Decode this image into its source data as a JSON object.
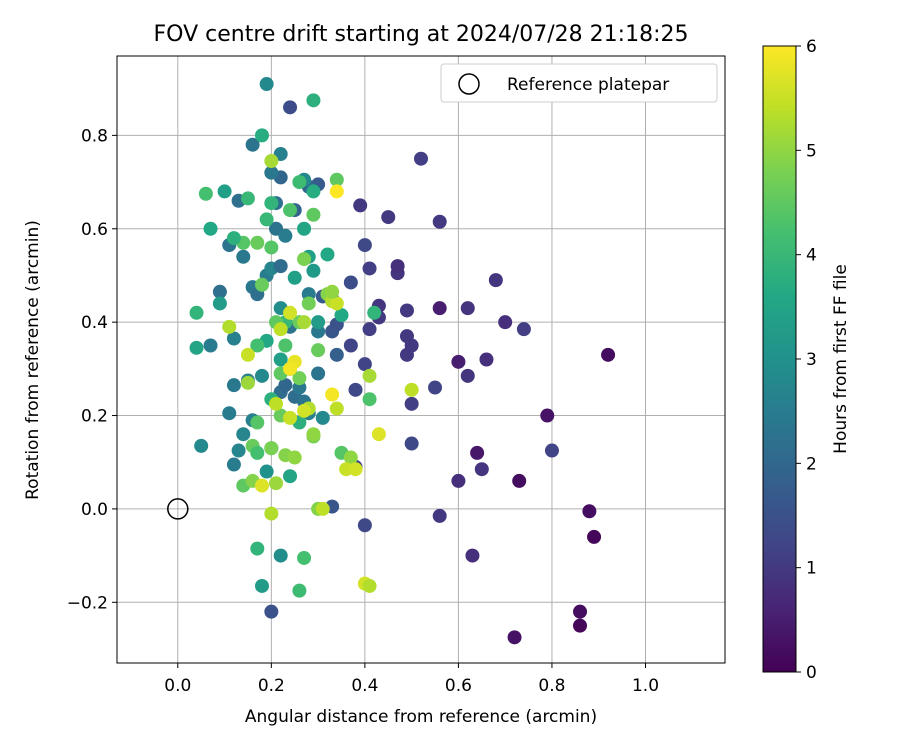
{
  "chart_data": {
    "type": "scatter",
    "title": "FOV centre drift starting at 2024/07/28 21:18:25",
    "xlabel": "Angular distance from reference (arcmin)",
    "ylabel": "Rotation from reference (arcmin)",
    "xlim": [
      -0.13,
      1.17
    ],
    "ylim": [
      -0.33,
      0.97
    ],
    "xticks": [
      0.0,
      0.2,
      0.4,
      0.6,
      0.8,
      1.0
    ],
    "xtick_labels": [
      "0.0",
      "0.2",
      "0.4",
      "0.6",
      "0.8",
      "1.0"
    ],
    "yticks": [
      -0.2,
      0.0,
      0.2,
      0.4,
      0.6,
      0.8
    ],
    "ytick_labels": [
      "−0.2",
      "0.0",
      "0.2",
      "0.4",
      "0.6",
      "0.8"
    ],
    "grid": true,
    "legend": {
      "placement": "top-right",
      "entries": [
        "Reference platepar"
      ]
    },
    "reference_point": {
      "x": 0.0,
      "y": 0.0,
      "marker": "hollow-circle"
    },
    "colorbar": {
      "label": "Hours from first FF file",
      "range": [
        0,
        6
      ],
      "ticks": [
        0,
        1,
        2,
        3,
        4,
        5,
        6
      ],
      "colormap": "viridis"
    },
    "point_hours_scale": "0-6",
    "points": [
      {
        "x": 0.88,
        "y": -0.005,
        "h": 0.2
      },
      {
        "x": 0.89,
        "y": -0.06,
        "h": 0.1
      },
      {
        "x": 0.86,
        "y": -0.22,
        "h": 0.2
      },
      {
        "x": 0.86,
        "y": -0.25,
        "h": 0.1
      },
      {
        "x": 0.72,
        "y": -0.275,
        "h": 0.3
      },
      {
        "x": 0.92,
        "y": 0.33,
        "h": 0.2
      },
      {
        "x": 0.79,
        "y": 0.2,
        "h": 0.3
      },
      {
        "x": 0.73,
        "y": 0.06,
        "h": 0.2
      },
      {
        "x": 0.64,
        "y": 0.12,
        "h": 0.4
      },
      {
        "x": 0.63,
        "y": -0.1,
        "h": 0.8
      },
      {
        "x": 0.65,
        "y": 0.085,
        "h": 0.9
      },
      {
        "x": 0.6,
        "y": 0.06,
        "h": 0.8
      },
      {
        "x": 0.56,
        "y": -0.015,
        "h": 1.0
      },
      {
        "x": 0.8,
        "y": 0.125,
        "h": 1.2
      },
      {
        "x": 0.6,
        "y": 0.315,
        "h": 0.5
      },
      {
        "x": 0.62,
        "y": 0.285,
        "h": 0.9
      },
      {
        "x": 0.66,
        "y": 0.32,
        "h": 0.8
      },
      {
        "x": 0.56,
        "y": 0.43,
        "h": 0.5
      },
      {
        "x": 0.62,
        "y": 0.43,
        "h": 0.9
      },
      {
        "x": 0.7,
        "y": 0.4,
        "h": 0.8
      },
      {
        "x": 0.74,
        "y": 0.385,
        "h": 1.1
      },
      {
        "x": 0.68,
        "y": 0.49,
        "h": 0.9
      },
      {
        "x": 0.56,
        "y": 0.615,
        "h": 1.0
      },
      {
        "x": 0.52,
        "y": 0.75,
        "h": 1.1
      },
      {
        "x": 0.55,
        "y": 0.26,
        "h": 1.2
      },
      {
        "x": 0.5,
        "y": 0.14,
        "h": 1.3
      },
      {
        "x": 0.5,
        "y": 0.225,
        "h": 1.1
      },
      {
        "x": 0.49,
        "y": 0.33,
        "h": 1.0
      },
      {
        "x": 0.5,
        "y": 0.35,
        "h": 1.0
      },
      {
        "x": 0.49,
        "y": 0.37,
        "h": 1.0
      },
      {
        "x": 0.49,
        "y": 0.425,
        "h": 1.0
      },
      {
        "x": 0.47,
        "y": 0.505,
        "h": 0.9
      },
      {
        "x": 0.47,
        "y": 0.52,
        "h": 0.8
      },
      {
        "x": 0.45,
        "y": 0.625,
        "h": 1.0
      },
      {
        "x": 0.43,
        "y": 0.435,
        "h": 0.9
      },
      {
        "x": 0.43,
        "y": 0.41,
        "h": 1.0
      },
      {
        "x": 0.41,
        "y": 0.385,
        "h": 1.1
      },
      {
        "x": 0.41,
        "y": 0.515,
        "h": 1.1
      },
      {
        "x": 0.4,
        "y": 0.565,
        "h": 1.3
      },
      {
        "x": 0.39,
        "y": 0.65,
        "h": 1.0
      },
      {
        "x": 0.4,
        "y": 0.31,
        "h": 1.2
      },
      {
        "x": 0.38,
        "y": 0.255,
        "h": 1.3
      },
      {
        "x": 0.37,
        "y": 0.35,
        "h": 1.2
      },
      {
        "x": 0.37,
        "y": 0.485,
        "h": 1.4
      },
      {
        "x": 0.4,
        "y": -0.035,
        "h": 1.3
      },
      {
        "x": 0.38,
        "y": 0.09,
        "h": 1.2
      },
      {
        "x": 0.33,
        "y": 0.005,
        "h": 1.6
      },
      {
        "x": 0.2,
        "y": -0.22,
        "h": 1.5
      },
      {
        "x": 0.24,
        "y": 0.86,
        "h": 1.4
      },
      {
        "x": 0.33,
        "y": 0.38,
        "h": 1.6
      },
      {
        "x": 0.34,
        "y": 0.395,
        "h": 1.5
      },
      {
        "x": 0.31,
        "y": 0.455,
        "h": 1.7
      },
      {
        "x": 0.33,
        "y": 0.45,
        "h": 1.6
      },
      {
        "x": 0.34,
        "y": 0.33,
        "h": 1.8
      },
      {
        "x": 0.3,
        "y": 0.695,
        "h": 1.7
      },
      {
        "x": 0.28,
        "y": 0.69,
        "h": 2.0
      },
      {
        "x": 0.25,
        "y": 0.64,
        "h": 1.9
      },
      {
        "x": 0.22,
        "y": 0.71,
        "h": 2.0
      },
      {
        "x": 0.21,
        "y": 0.655,
        "h": 2.2
      },
      {
        "x": 0.2,
        "y": 0.72,
        "h": 2.4
      },
      {
        "x": 0.22,
        "y": 0.76,
        "h": 2.6
      },
      {
        "x": 0.16,
        "y": 0.78,
        "h": 2.3
      },
      {
        "x": 0.19,
        "y": 0.91,
        "h": 2.8
      },
      {
        "x": 0.13,
        "y": 0.66,
        "h": 2.2
      },
      {
        "x": 0.11,
        "y": 0.565,
        "h": 2.3
      },
      {
        "x": 0.14,
        "y": 0.54,
        "h": 2.4
      },
      {
        "x": 0.09,
        "y": 0.465,
        "h": 2.2
      },
      {
        "x": 0.07,
        "y": 0.35,
        "h": 2.5
      },
      {
        "x": 0.12,
        "y": 0.365,
        "h": 2.6
      },
      {
        "x": 0.12,
        "y": 0.265,
        "h": 2.4
      },
      {
        "x": 0.11,
        "y": 0.205,
        "h": 2.5
      },
      {
        "x": 0.05,
        "y": 0.135,
        "h": 2.8
      },
      {
        "x": 0.12,
        "y": 0.095,
        "h": 2.5
      },
      {
        "x": 0.13,
        "y": 0.125,
        "h": 2.7
      },
      {
        "x": 0.14,
        "y": 0.16,
        "h": 2.7
      },
      {
        "x": 0.16,
        "y": 0.19,
        "h": 2.6
      },
      {
        "x": 0.15,
        "y": 0.275,
        "h": 2.6
      },
      {
        "x": 0.18,
        "y": 0.285,
        "h": 2.8
      },
      {
        "x": 0.16,
        "y": 0.475,
        "h": 2.4
      },
      {
        "x": 0.17,
        "y": 0.46,
        "h": 2.2
      },
      {
        "x": 0.19,
        "y": 0.5,
        "h": 2.5
      },
      {
        "x": 0.2,
        "y": 0.515,
        "h": 2.7
      },
      {
        "x": 0.21,
        "y": 0.6,
        "h": 2.3
      },
      {
        "x": 0.23,
        "y": 0.585,
        "h": 2.5
      },
      {
        "x": 0.22,
        "y": 0.52,
        "h": 2.1
      },
      {
        "x": 0.24,
        "y": 0.39,
        "h": 2.3
      },
      {
        "x": 0.22,
        "y": 0.43,
        "h": 2.9
      },
      {
        "x": 0.22,
        "y": 0.25,
        "h": 2.1
      },
      {
        "x": 0.23,
        "y": 0.265,
        "h": 2.0
      },
      {
        "x": 0.24,
        "y": 0.3,
        "h": 2.2
      },
      {
        "x": 0.25,
        "y": 0.24,
        "h": 2.1
      },
      {
        "x": 0.26,
        "y": 0.26,
        "h": 2.4
      },
      {
        "x": 0.27,
        "y": 0.23,
        "h": 2.3
      },
      {
        "x": 0.28,
        "y": 0.205,
        "h": 2.6
      },
      {
        "x": 0.3,
        "y": 0.29,
        "h": 2.3
      },
      {
        "x": 0.3,
        "y": 0.38,
        "h": 2.4
      },
      {
        "x": 0.28,
        "y": 0.46,
        "h": 2.5
      },
      {
        "x": 0.27,
        "y": 0.705,
        "h": 2.8
      },
      {
        "x": 0.19,
        "y": 0.08,
        "h": 3.0
      },
      {
        "x": 0.22,
        "y": -0.1,
        "h": 2.9
      },
      {
        "x": 0.31,
        "y": 0.195,
        "h": 2.8
      },
      {
        "x": 0.2,
        "y": 0.13,
        "h": 3.2
      },
      {
        "x": 0.29,
        "y": 0.875,
        "h": 3.8
      },
      {
        "x": 0.18,
        "y": 0.8,
        "h": 3.7
      },
      {
        "x": 0.27,
        "y": 0.6,
        "h": 3.5
      },
      {
        "x": 0.29,
        "y": 0.68,
        "h": 3.7
      },
      {
        "x": 0.32,
        "y": 0.545,
        "h": 3.6
      },
      {
        "x": 0.28,
        "y": 0.54,
        "h": 3.4
      },
      {
        "x": 0.25,
        "y": 0.495,
        "h": 3.4
      },
      {
        "x": 0.29,
        "y": 0.51,
        "h": 3.2
      },
      {
        "x": 0.3,
        "y": 0.4,
        "h": 3.3
      },
      {
        "x": 0.35,
        "y": 0.415,
        "h": 3.6
      },
      {
        "x": 0.42,
        "y": 0.42,
        "h": 3.9
      },
      {
        "x": 0.19,
        "y": 0.36,
        "h": 3.6
      },
      {
        "x": 0.22,
        "y": 0.32,
        "h": 3.4
      },
      {
        "x": 0.2,
        "y": 0.235,
        "h": 3.8
      },
      {
        "x": 0.23,
        "y": 0.4,
        "h": 4.0
      },
      {
        "x": 0.26,
        "y": 0.185,
        "h": 3.8
      },
      {
        "x": 0.24,
        "y": 0.07,
        "h": 3.5
      },
      {
        "x": 0.17,
        "y": -0.085,
        "h": 3.9
      },
      {
        "x": 0.18,
        "y": -0.165,
        "h": 3.3
      },
      {
        "x": 0.26,
        "y": -0.175,
        "h": 4.1
      },
      {
        "x": 0.27,
        "y": -0.105,
        "h": 4.2
      },
      {
        "x": 0.04,
        "y": 0.42,
        "h": 3.9
      },
      {
        "x": 0.04,
        "y": 0.345,
        "h": 3.5
      },
      {
        "x": 0.09,
        "y": 0.44,
        "h": 3.3
      },
      {
        "x": 0.07,
        "y": 0.6,
        "h": 3.6
      },
      {
        "x": 0.1,
        "y": 0.68,
        "h": 3.4
      },
      {
        "x": 0.06,
        "y": 0.675,
        "h": 4.2
      },
      {
        "x": 0.15,
        "y": 0.665,
        "h": 4.0
      },
      {
        "x": 0.14,
        "y": 0.57,
        "h": 4.4
      },
      {
        "x": 0.12,
        "y": 0.58,
        "h": 3.8
      },
      {
        "x": 0.19,
        "y": 0.62,
        "h": 4.0
      },
      {
        "x": 0.2,
        "y": 0.655,
        "h": 3.9
      },
      {
        "x": 0.26,
        "y": 0.7,
        "h": 4.1
      },
      {
        "x": 0.29,
        "y": 0.63,
        "h": 4.5
      },
      {
        "x": 0.24,
        "y": 0.64,
        "h": 4.3
      },
      {
        "x": 0.17,
        "y": 0.57,
        "h": 4.6
      },
      {
        "x": 0.2,
        "y": 0.56,
        "h": 4.4
      },
      {
        "x": 0.34,
        "y": 0.705,
        "h": 4.5
      },
      {
        "x": 0.18,
        "y": 0.48,
        "h": 4.6
      },
      {
        "x": 0.27,
        "y": 0.535,
        "h": 4.8
      },
      {
        "x": 0.28,
        "y": 0.44,
        "h": 4.7
      },
      {
        "x": 0.32,
        "y": 0.46,
        "h": 4.9
      },
      {
        "x": 0.26,
        "y": 0.4,
        "h": 4.6
      },
      {
        "x": 0.21,
        "y": 0.4,
        "h": 4.5
      },
      {
        "x": 0.23,
        "y": 0.35,
        "h": 4.3
      },
      {
        "x": 0.17,
        "y": 0.35,
        "h": 4.2
      },
      {
        "x": 0.3,
        "y": 0.34,
        "h": 4.6
      },
      {
        "x": 0.22,
        "y": 0.29,
        "h": 4.5
      },
      {
        "x": 0.26,
        "y": 0.28,
        "h": 4.7
      },
      {
        "x": 0.17,
        "y": 0.185,
        "h": 4.4
      },
      {
        "x": 0.22,
        "y": 0.2,
        "h": 4.6
      },
      {
        "x": 0.29,
        "y": 0.155,
        "h": 4.8
      },
      {
        "x": 0.35,
        "y": 0.12,
        "h": 4.4
      },
      {
        "x": 0.37,
        "y": 0.11,
        "h": 5.0
      },
      {
        "x": 0.41,
        "y": 0.235,
        "h": 4.3
      },
      {
        "x": 0.41,
        "y": 0.285,
        "h": 5.2
      },
      {
        "x": 0.2,
        "y": 0.13,
        "h": 4.8
      },
      {
        "x": 0.16,
        "y": 0.135,
        "h": 4.6
      },
      {
        "x": 0.17,
        "y": 0.12,
        "h": 4.2
      },
      {
        "x": 0.23,
        "y": 0.115,
        "h": 4.9
      },
      {
        "x": 0.25,
        "y": 0.11,
        "h": 5.0
      },
      {
        "x": 0.14,
        "y": 0.05,
        "h": 4.5
      },
      {
        "x": 0.16,
        "y": 0.06,
        "h": 4.9
      },
      {
        "x": 0.21,
        "y": 0.055,
        "h": 5.1
      },
      {
        "x": 0.3,
        "y": 0.0,
        "h": 4.9
      },
      {
        "x": 0.2,
        "y": -0.01,
        "h": 5.3
      },
      {
        "x": 0.15,
        "y": 0.27,
        "h": 5.1
      },
      {
        "x": 0.15,
        "y": 0.33,
        "h": 5.5
      },
      {
        "x": 0.11,
        "y": 0.39,
        "h": 5.3
      },
      {
        "x": 0.22,
        "y": 0.385,
        "h": 5.4
      },
      {
        "x": 0.24,
        "y": 0.42,
        "h": 5.6
      },
      {
        "x": 0.27,
        "y": 0.4,
        "h": 5.2
      },
      {
        "x": 0.33,
        "y": 0.445,
        "h": 5.3
      },
      {
        "x": 0.34,
        "y": 0.44,
        "h": 5.5
      },
      {
        "x": 0.33,
        "y": 0.465,
        "h": 5.0
      },
      {
        "x": 0.25,
        "y": 0.315,
        "h": 5.8
      },
      {
        "x": 0.24,
        "y": 0.3,
        "h": 5.9
      },
      {
        "x": 0.21,
        "y": 0.225,
        "h": 5.4
      },
      {
        "x": 0.24,
        "y": 0.195,
        "h": 5.5
      },
      {
        "x": 0.28,
        "y": 0.215,
        "h": 5.3
      },
      {
        "x": 0.27,
        "y": 0.21,
        "h": 5.6
      },
      {
        "x": 0.33,
        "y": 0.245,
        "h": 5.9
      },
      {
        "x": 0.34,
        "y": 0.215,
        "h": 5.4
      },
      {
        "x": 0.18,
        "y": 0.05,
        "h": 5.7
      },
      {
        "x": 0.2,
        "y": 0.745,
        "h": 5.2
      },
      {
        "x": 0.34,
        "y": 0.68,
        "h": 6.0
      },
      {
        "x": 0.29,
        "y": 0.16,
        "h": 5.0
      },
      {
        "x": 0.36,
        "y": 0.085,
        "h": 5.5
      },
      {
        "x": 0.38,
        "y": 0.085,
        "h": 5.6
      },
      {
        "x": 0.43,
        "y": 0.16,
        "h": 5.7
      },
      {
        "x": 0.5,
        "y": 0.255,
        "h": 5.4
      },
      {
        "x": 0.4,
        "y": -0.16,
        "h": 5.6
      },
      {
        "x": 0.41,
        "y": -0.165,
        "h": 5.3
      },
      {
        "x": 0.31,
        "y": 0.0,
        "h": 5.4
      }
    ]
  }
}
